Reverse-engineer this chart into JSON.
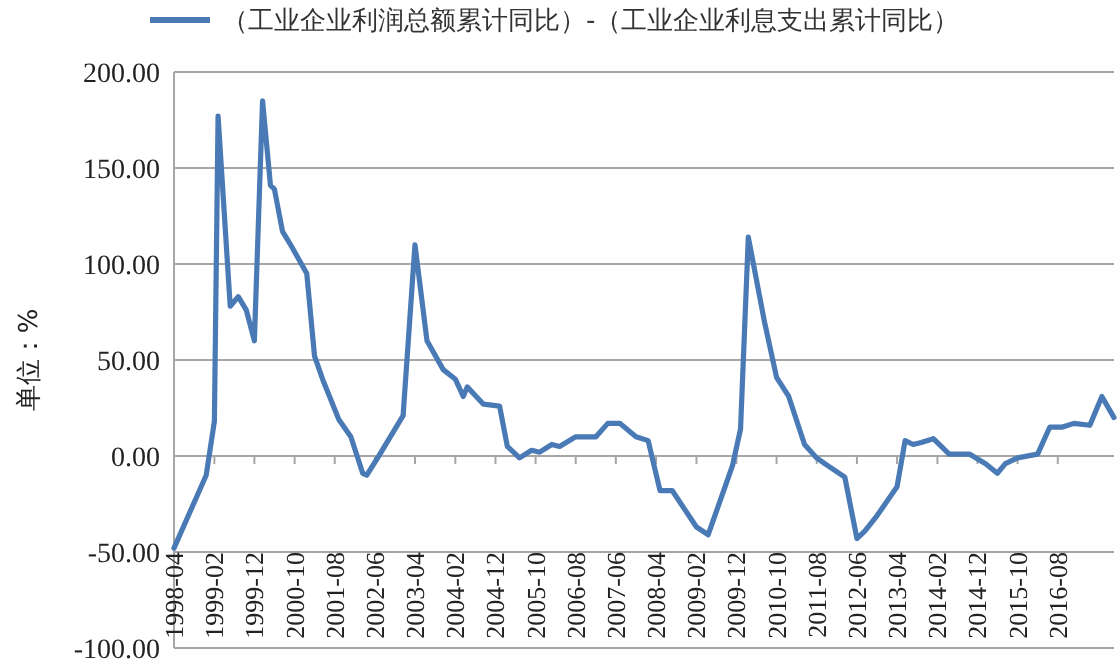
{
  "chart_data": {
    "type": "line",
    "ylabel": "单位：%",
    "legend": "top",
    "grid": "y",
    "x": [
      "1998-04",
      "1998-12",
      "1999-02",
      "1999-03",
      "1999-06",
      "1999-08",
      "1999-10",
      "1999-12",
      "2000-02",
      "2000-04",
      "2000-05",
      "2000-07",
      "2000-09",
      "2001-01",
      "2001-03",
      "2001-05",
      "2001-09",
      "2001-12",
      "2002-03",
      "2002-04",
      "2002-07",
      "2003-01",
      "2003-04",
      "2003-07",
      "2003-11",
      "2004-02",
      "2004-04",
      "2004-05",
      "2004-09",
      "2005-01",
      "2005-03",
      "2005-06",
      "2005-09",
      "2005-11",
      "2006-02",
      "2006-04",
      "2006-08",
      "2007-01",
      "2007-04",
      "2007-07",
      "2007-11",
      "2008-02",
      "2008-05",
      "2008-08",
      "2009-02",
      "2009-05",
      "2009-11",
      "2010-01",
      "2010-03",
      "2010-07",
      "2010-10",
      "2011-01",
      "2011-05",
      "2011-08",
      "2011-10",
      "2012-03",
      "2012-06",
      "2012-08",
      "2012-11",
      "2013-04",
      "2013-06",
      "2013-08",
      "2013-10",
      "2014-01",
      "2014-05",
      "2014-10",
      "2015-02",
      "2015-05",
      "2015-07",
      "2015-10",
      "2016-03",
      "2016-06",
      "2016-09",
      "2016-12",
      "2017-04",
      "2017-07",
      "2017-10"
    ],
    "series": [
      {
        "name": "（工业企业利润总额累计同比）-（工业企业利息支出累计同比）",
        "color": "#4a7ab5",
        "values": [
          -48,
          -10,
          18,
          177,
          78,
          83,
          76,
          60,
          185,
          141,
          139,
          117,
          110,
          95,
          52,
          40,
          19,
          10,
          -9,
          -10,
          0,
          21,
          110,
          60,
          45,
          40,
          31,
          36,
          27,
          26,
          5,
          -1,
          3,
          2,
          6,
          5,
          10,
          10,
          17,
          17,
          10,
          8,
          -18,
          -18,
          -37,
          -41,
          -5,
          14,
          114,
          70,
          41,
          31,
          6,
          -1,
          -4,
          -11,
          -43,
          -39,
          -31,
          -16,
          8,
          6,
          7,
          9,
          1,
          1,
          -4,
          -9,
          -4,
          -1,
          1,
          15,
          15,
          17,
          16,
          31,
          20
        ]
      }
    ],
    "xlim": [
      "1998-04",
      "2017-10"
    ],
    "xticks": [
      {
        "value": "1998-04",
        "label": "1998-04"
      },
      {
        "value": "1999-02",
        "label": "1999-02"
      },
      {
        "value": "1999-12",
        "label": "1999-12"
      },
      {
        "value": "2000-10",
        "label": "2000-10"
      },
      {
        "value": "2001-08",
        "label": "2001-08"
      },
      {
        "value": "2002-06",
        "label": "2002-06"
      },
      {
        "value": "2003-04",
        "label": "2003-04"
      },
      {
        "value": "2004-02",
        "label": "2004-02"
      },
      {
        "value": "2004-12",
        "label": "2004-12"
      },
      {
        "value": "2005-10",
        "label": "2005-10"
      },
      {
        "value": "2006-08",
        "label": "2006-08"
      },
      {
        "value": "2007-06",
        "label": "2007-06"
      },
      {
        "value": "2008-04",
        "label": "2008-04"
      },
      {
        "value": "2009-02",
        "label": "2009-02"
      },
      {
        "value": "2009-12",
        "label": "2009-12"
      },
      {
        "value": "2010-10",
        "label": "2010-10"
      },
      {
        "value": "2011-08",
        "label": "2011-08"
      },
      {
        "value": "2012-06",
        "label": "2012-06"
      },
      {
        "value": "2013-04",
        "label": "2013-04"
      },
      {
        "value": "2014-02",
        "label": "2014-02"
      },
      {
        "value": "2014-12",
        "label": "2014-12"
      },
      {
        "value": "2015-10",
        "label": "2015-10"
      },
      {
        "value": "2016-08",
        "label": "2016-08"
      }
    ],
    "ylim": [
      -100,
      200
    ],
    "yticks": [
      {
        "value": -100,
        "label": "-100.00"
      },
      {
        "value": -50,
        "label": "-50.00"
      },
      {
        "value": 0,
        "label": "0.00"
      },
      {
        "value": 50,
        "label": "50.00"
      },
      {
        "value": 100,
        "label": "100.00"
      },
      {
        "value": 150,
        "label": "150.00"
      },
      {
        "value": 200,
        "label": "200.00"
      }
    ]
  }
}
